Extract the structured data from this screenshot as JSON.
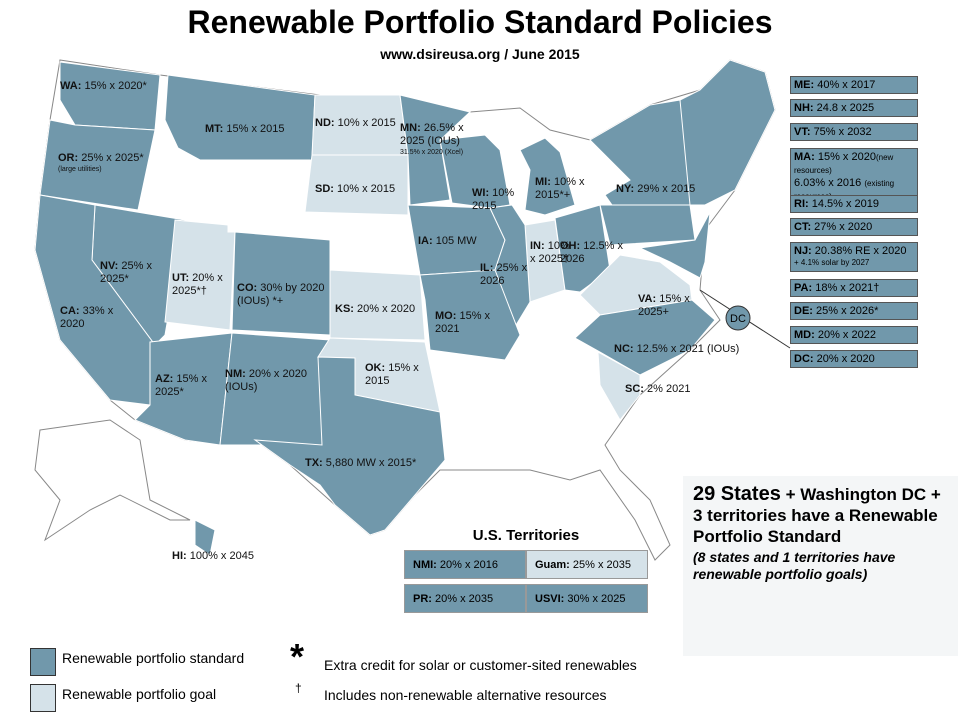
{
  "title": "Renewable Portfolio Standard Policies",
  "subtitle": "www.dsireusa.org  / June 2015",
  "colors": {
    "standard": "#7198ab",
    "goal": "#d5e2e9"
  },
  "map_labels": [
    {
      "abbr": "WA:",
      "policy": "15% x 2020*",
      "kind": "standard"
    },
    {
      "abbr": "OR:",
      "policy": "25% x 2025*",
      "note": "(large utilities)",
      "kind": "standard"
    },
    {
      "abbr": "MT:",
      "policy": "15% x 2015",
      "kind": "standard"
    },
    {
      "abbr": "ND:",
      "policy": "10% x 2015",
      "kind": "goal"
    },
    {
      "abbr": "MN:",
      "policy": "26.5% x 2025 (IOUs)",
      "note": "31.5% x 2020 (Xcel)",
      "kind": "standard"
    },
    {
      "abbr": "SD:",
      "policy": "10% x 2015",
      "kind": "goal"
    },
    {
      "abbr": "WI:",
      "policy": "10% 2015",
      "kind": "standard"
    },
    {
      "abbr": "MI:",
      "policy": "10% x 2015*+",
      "kind": "standard"
    },
    {
      "abbr": "NY:",
      "policy": "29% x 2015",
      "kind": "standard"
    },
    {
      "abbr": "IA:",
      "policy": "105 MW",
      "kind": "standard"
    },
    {
      "abbr": "IN:",
      "policy": "10% x 2025†",
      "kind": "goal"
    },
    {
      "abbr": "OH:",
      "policy": "12.5% x 2026",
      "kind": "standard"
    },
    {
      "abbr": "IL:",
      "policy": "25% x 2026",
      "kind": "standard"
    },
    {
      "abbr": "NV:",
      "policy": "25% x 2025*",
      "kind": "standard"
    },
    {
      "abbr": "UT:",
      "policy": "20% x 2025*†",
      "kind": "goal"
    },
    {
      "abbr": "CO:",
      "policy": "30% by 2020 (IOUs) *+",
      "kind": "standard"
    },
    {
      "abbr": "KS:",
      "policy": "20% x 2020",
      "kind": "goal"
    },
    {
      "abbr": "VA:",
      "policy": "15% x 2025+",
      "kind": "goal"
    },
    {
      "abbr": "CA:",
      "policy": "33% x 2020",
      "kind": "standard"
    },
    {
      "abbr": "MO:",
      "policy": "15% x 2021",
      "kind": "standard"
    },
    {
      "abbr": "NC:",
      "policy": "12.5% x 2021 (IOUs)",
      "kind": "standard"
    },
    {
      "abbr": "AZ:",
      "policy": "15% x 2025*",
      "kind": "standard"
    },
    {
      "abbr": "NM:",
      "policy": "20% x 2020 (IOUs)",
      "kind": "standard"
    },
    {
      "abbr": "OK:",
      "policy": "15% x 2015",
      "kind": "goal"
    },
    {
      "abbr": "SC:",
      "policy": "2% 2021",
      "kind": "goal"
    },
    {
      "abbr": "TX:",
      "policy": "5,880 MW x 2015*",
      "kind": "standard"
    },
    {
      "abbr": "HI:",
      "policy": "100% x 2045",
      "kind": "standard"
    }
  ],
  "dc_marker": "DC",
  "right_boxes": [
    {
      "abbr": "ME:",
      "policy": "40% x 2017"
    },
    {
      "abbr": "NH:",
      "policy": "24.8 x 2025"
    },
    {
      "abbr": "VT:",
      "policy": "75% x 2032"
    },
    {
      "abbr": "MA:",
      "policy": "15% x 2020",
      "note": "(new resources)",
      "policy2": "6.03% x 2016",
      "note2": "(existing resources)"
    },
    {
      "abbr": "RI:",
      "policy": "14.5% x 2019"
    },
    {
      "abbr": "CT:",
      "policy": "27% x 2020"
    },
    {
      "abbr": "NJ:",
      "policy": "20.38% RE x 2020",
      "note": "+ 4.1% solar by 2027"
    },
    {
      "abbr": "PA:",
      "policy": "18% x 2021†"
    },
    {
      "abbr": "DE:",
      "policy": "25% x 2026*"
    },
    {
      "abbr": "MD:",
      "policy": "20% x 2022"
    },
    {
      "abbr": "DC:",
      "policy": "20% x 2020"
    }
  ],
  "territories": {
    "title": "U.S. Territories",
    "items": [
      {
        "abbr": "NMI:",
        "policy": "20% x 2016",
        "kind": "standard"
      },
      {
        "abbr": "Guam:",
        "policy": "25% x 2035",
        "kind": "goal"
      },
      {
        "abbr": "PR:",
        "policy": "20% x 2035",
        "kind": "standard"
      },
      {
        "abbr": "USVI:",
        "policy": "30% x 2025",
        "kind": "standard"
      }
    ]
  },
  "summary": {
    "highlight": "29 States",
    "text": "+ Washington DC + 3 territories have a Renewable Portfolio Standard",
    "note": "(8 states and 1 territories have renewable portfolio goals)"
  },
  "legend": {
    "items": [
      {
        "label": "Renewable portfolio standard",
        "kind": "standard"
      },
      {
        "label": "Renewable portfolio goal",
        "kind": "goal"
      }
    ],
    "symbols": [
      {
        "symbol": "*",
        "text": "Extra credit for solar or customer-sited renewables"
      },
      {
        "symbol": "†",
        "text": "Includes non-renewable alternative resources"
      }
    ]
  }
}
